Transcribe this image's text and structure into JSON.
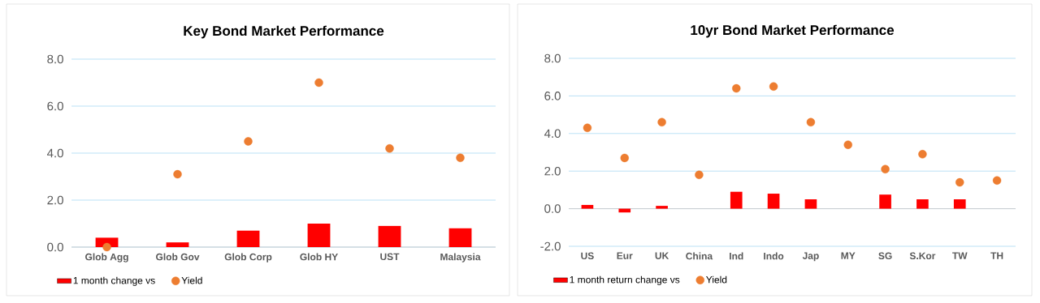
{
  "chart_data": [
    {
      "type": "bar",
      "title": "Key  Bond Market Performance",
      "categories": [
        "Glob Agg",
        "Glob Gov",
        "Glob Corp",
        "Glob HY",
        "UST",
        "Malaysia"
      ],
      "series": [
        {
          "name": "1 month change vs",
          "color": "#ff0000",
          "values": [
            0.4,
            0.2,
            0.7,
            1.0,
            0.9,
            0.8
          ]
        },
        {
          "name": "Yield",
          "type": "scatter",
          "color": "#ed7d31",
          "marker": "circle",
          "values": [
            0.0,
            3.1,
            4.5,
            7.0,
            4.2,
            3.8
          ]
        }
      ],
      "ylim": [
        0,
        8
      ],
      "yticks": [
        {
          "value": 0,
          "label": "0.0"
        },
        {
          "value": 2,
          "label": "2.0"
        },
        {
          "value": 4,
          "label": "4.0"
        },
        {
          "value": 6,
          "label": "6.0"
        },
        {
          "value": 8,
          "label": "8.0"
        }
      ],
      "grid": "y",
      "legend": "bottom left"
    },
    {
      "type": "bar",
      "title": "10yr Bond Market Performance",
      "categories": [
        "US",
        "Eur",
        "UK",
        "China",
        "Ind",
        "Indo",
        "Jap",
        "MY",
        "SG",
        "S.Kor",
        "TW",
        "TH"
      ],
      "series": [
        {
          "name": "1 month return change vs",
          "color": "#ff0000",
          "values": [
            0.2,
            -0.2,
            0.15,
            null,
            0.9,
            0.8,
            0.5,
            null,
            0.75,
            0.5,
            0.5,
            null
          ]
        },
        {
          "name": "Yield",
          "type": "scatter",
          "color": "#ed7d31",
          "marker": "circle",
          "values": [
            4.3,
            2.7,
            4.6,
            1.8,
            6.4,
            6.5,
            4.6,
            3.4,
            2.1,
            2.9,
            1.4,
            1.5
          ]
        }
      ],
      "ylim": [
        -2,
        8
      ],
      "yticks": [
        {
          "value": -2,
          "label": "-2.0"
        },
        {
          "value": 0,
          "label": "0.0"
        },
        {
          "value": 2,
          "label": "2.0"
        },
        {
          "value": 4,
          "label": "4.0"
        },
        {
          "value": 6,
          "label": "6.0"
        },
        {
          "value": 8,
          "label": "8.0"
        }
      ],
      "grid": "y",
      "legend": "bottom left"
    }
  ]
}
